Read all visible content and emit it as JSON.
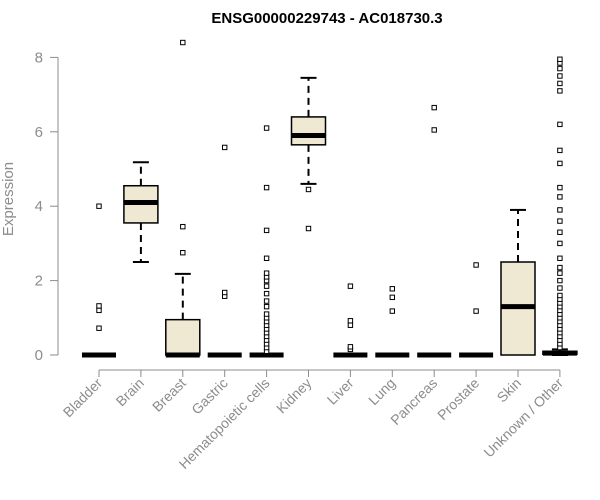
{
  "chart_data": {
    "type": "boxplot",
    "title": "ENSG00000229743 - AC018730.3",
    "xlabel": "",
    "ylabel": "Expression",
    "ylim": [
      0,
      8.4
    ],
    "yticks": [
      0,
      2,
      4,
      6,
      8
    ],
    "box_fill": "#efe8d2",
    "categories": [
      "Bladder",
      "Brain",
      "Breast",
      "Gastric",
      "Hematopoietic cells",
      "Kidney",
      "Liver",
      "Lung",
      "Pancreas",
      "Prostate",
      "Skin",
      "Unknown / Other"
    ],
    "boxes": [
      {
        "name": "Bladder",
        "whisker_low": 0,
        "q1": 0,
        "median": 0,
        "q3": 0,
        "whisker_high": 0,
        "outliers": [
          0.72,
          1.2,
          1.32,
          4.0
        ]
      },
      {
        "name": "Brain",
        "whisker_low": 2.5,
        "q1": 3.55,
        "median": 4.1,
        "q3": 4.55,
        "whisker_high": 5.18,
        "outliers": []
      },
      {
        "name": "Breast",
        "whisker_low": 0,
        "q1": 0,
        "median": 0,
        "q3": 0.95,
        "whisker_high": 2.18,
        "outliers": [
          2.75,
          3.45,
          8.4
        ]
      },
      {
        "name": "Gastric",
        "whisker_low": 0,
        "q1": 0,
        "median": 0,
        "q3": 0,
        "whisker_high": 0,
        "outliers": [
          1.58,
          1.68,
          5.58
        ]
      },
      {
        "name": "Hematopoietic cells",
        "whisker_low": 0,
        "q1": 0,
        "median": 0,
        "q3": 0,
        "whisker_high": 0,
        "outliers": [
          0.1,
          0.2,
          0.3,
          0.4,
          0.5,
          0.6,
          0.7,
          0.8,
          0.9,
          1.0,
          1.1,
          1.3,
          1.45,
          1.65,
          1.85,
          2.0,
          2.1,
          2.2,
          2.6,
          3.35,
          4.5,
          6.1
        ]
      },
      {
        "name": "Kidney",
        "whisker_low": 4.6,
        "q1": 5.65,
        "median": 5.9,
        "q3": 6.4,
        "whisker_high": 7.45,
        "outliers": [
          3.4,
          4.45
        ]
      },
      {
        "name": "Liver",
        "whisker_low": 0,
        "q1": 0,
        "median": 0,
        "q3": 0,
        "whisker_high": 0,
        "outliers": [
          0.15,
          0.22,
          0.8,
          0.92,
          1.85
        ]
      },
      {
        "name": "Lung",
        "whisker_low": 0,
        "q1": 0,
        "median": 0,
        "q3": 0,
        "whisker_high": 0,
        "outliers": [
          1.18,
          1.55,
          1.78
        ]
      },
      {
        "name": "Pancreas",
        "whisker_low": 0,
        "q1": 0,
        "median": 0,
        "q3": 0,
        "whisker_high": 0,
        "outliers": [
          6.05,
          6.65
        ]
      },
      {
        "name": "Prostate",
        "whisker_low": 0,
        "q1": 0,
        "median": 0,
        "q3": 0,
        "whisker_high": 0,
        "outliers": [
          1.18,
          2.42
        ]
      },
      {
        "name": "Skin",
        "whisker_low": 0,
        "q1": 0,
        "median": 1.3,
        "q3": 2.5,
        "whisker_high": 3.9,
        "outliers": []
      },
      {
        "name": "Unknown / Other",
        "whisker_low": 0,
        "q1": 0.02,
        "median": 0.05,
        "q3": 0.1,
        "whisker_high": 0.15,
        "outliers": [
          0.2,
          0.3,
          0.4,
          0.5,
          0.6,
          0.7,
          0.8,
          0.9,
          1.0,
          1.1,
          1.2,
          1.3,
          1.4,
          1.5,
          1.6,
          1.8,
          2.0,
          2.2,
          2.35,
          2.6,
          3.0,
          3.3,
          3.6,
          3.9,
          4.25,
          4.5,
          5.15,
          5.5,
          6.2,
          7.1,
          7.3,
          7.5,
          7.7,
          7.85,
          7.95
        ]
      }
    ]
  }
}
